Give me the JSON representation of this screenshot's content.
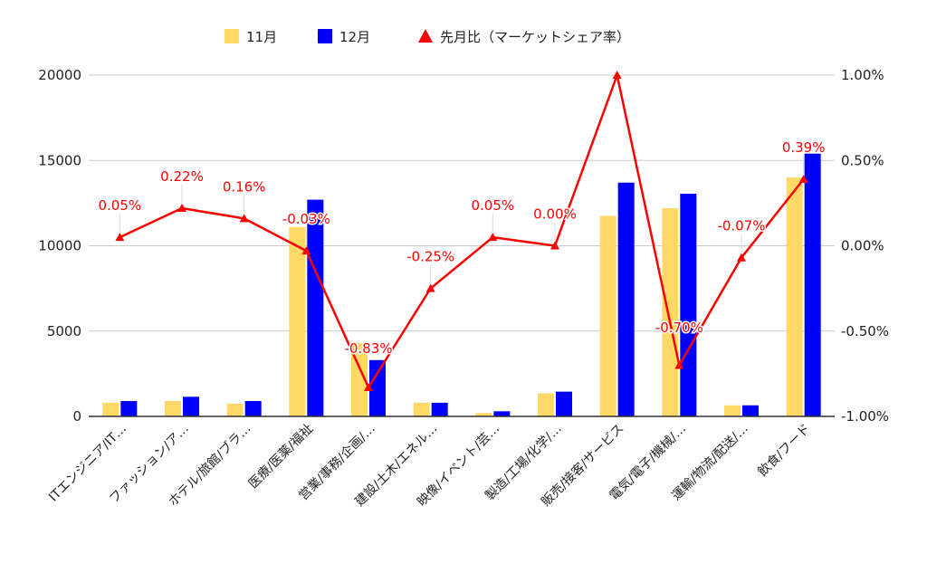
{
  "chart_data": {
    "type": "bar",
    "categories": [
      "ITエンジニア/IT…",
      "ファッション/ア…",
      "ホテル/旅館/ブラ…",
      "医療/医薬/福祉",
      "営業/事務/企画/…",
      "建設/土木/エネル…",
      "映像/イベント/芸…",
      "製造/工場/化学/…",
      "販売/接客/サービス",
      "電気/電子/機械/…",
      "運輸/物流/配送/…",
      "飲食/フード"
    ],
    "series": [
      {
        "name": "11月",
        "type": "bar",
        "axis": "left",
        "color": "#ffd966",
        "values": [
          800,
          900,
          750,
          11100,
          4300,
          800,
          200,
          1350,
          11750,
          12200,
          650,
          14000
        ]
      },
      {
        "name": "12月",
        "type": "bar",
        "axis": "left",
        "color": "#0000ff",
        "values": [
          900,
          1150,
          900,
          12700,
          3300,
          800,
          300,
          1450,
          13700,
          13050,
          650,
          15400
        ]
      },
      {
        "name": "先月比（マーケットシェア率）",
        "type": "line",
        "axis": "right",
        "color": "#ff0000",
        "values": [
          0.05,
          0.22,
          0.16,
          -0.03,
          -0.83,
          -0.25,
          0.05,
          0.0,
          1.0,
          -0.7,
          -0.07,
          0.39
        ],
        "labels": [
          "0.05%",
          "0.22%",
          "0.16%",
          "-0.03%",
          "-0.83%",
          "-0.25%",
          "0.05%",
          "0.00%",
          "",
          "-0.70%",
          "-0.07%",
          "0.39%"
        ]
      }
    ],
    "left_axis": {
      "min": 0,
      "max": 20000,
      "ticks": [
        "0",
        "5000",
        "10000",
        "15000",
        "20000"
      ]
    },
    "right_axis": {
      "min": -1.0,
      "max": 1.0,
      "ticks": [
        "-1.00%",
        "-0.50%",
        "0.00%",
        "0.50%",
        "1.00%"
      ]
    },
    "title": "",
    "xlabel": "",
    "ylabel": "",
    "grid": true,
    "legend_position": "top"
  }
}
